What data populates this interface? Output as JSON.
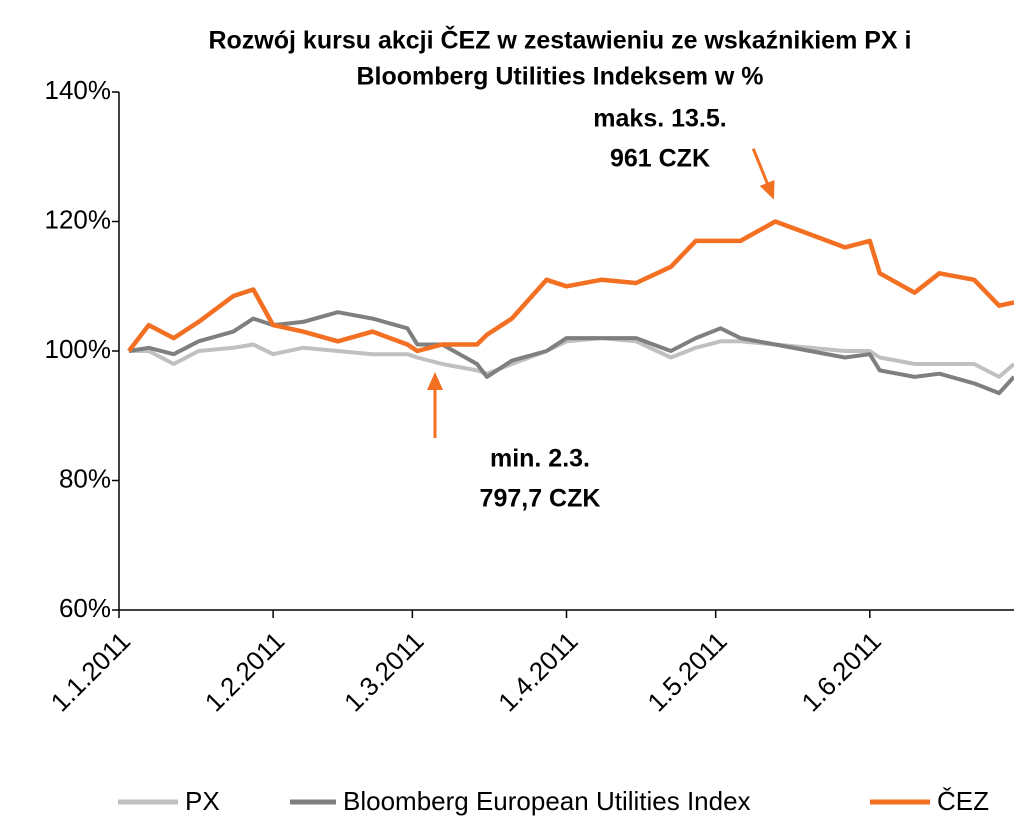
{
  "chart_data": {
    "type": "line",
    "title": [
      "Rozwój kursu akcji ČEZ w zestawieniu ze wskaźnikiem PX i",
      "Bloomberg Utilities Indeksem w %"
    ],
    "x": [
      "2011-01-03",
      "2011-01-07",
      "2011-01-12",
      "2011-01-17",
      "2011-01-24",
      "2011-01-28",
      "2011-02-01",
      "2011-02-07",
      "2011-02-14",
      "2011-02-21",
      "2011-02-28",
      "2011-03-02",
      "2011-03-07",
      "2011-03-14",
      "2011-03-16",
      "2011-03-21",
      "2011-03-28",
      "2011-04-01",
      "2011-04-08",
      "2011-04-15",
      "2011-04-22",
      "2011-04-27",
      "2011-05-02",
      "2011-05-06",
      "2011-05-13",
      "2011-05-20",
      "2011-05-27",
      "2011-06-01",
      "2011-06-03",
      "2011-06-10",
      "2011-06-15",
      "2011-06-22",
      "2011-06-27",
      "2011-06-30"
    ],
    "series": [
      {
        "name": "PX",
        "color": "#c0c0c0",
        "values": [
          100,
          100,
          98,
          100,
          100.5,
          101,
          99.5,
          100.5,
          100,
          99.5,
          99.5,
          99,
          98,
          97,
          96.5,
          98,
          100,
          101.5,
          102,
          101.5,
          99,
          100.5,
          101.5,
          101.5,
          101,
          100.5,
          100,
          100,
          99,
          98,
          98,
          98,
          96,
          98
        ]
      },
      {
        "name": "Bloomberg European Utilities Index",
        "color": "#7f7f7f",
        "values": [
          100,
          100.5,
          99.5,
          101.5,
          103,
          105,
          104,
          104.5,
          106,
          105,
          103.5,
          101,
          101,
          98,
          96,
          98.5,
          100,
          102,
          102,
          102,
          100,
          102,
          103.5,
          102,
          101,
          100,
          99,
          99.5,
          97,
          96,
          96.5,
          95,
          93.5,
          96
        ]
      },
      {
        "name": "ČEZ",
        "color": "#f36f21",
        "values": [
          100,
          104,
          102,
          104.5,
          108.5,
          109.5,
          104,
          103,
          101.5,
          103,
          101,
          100,
          101,
          101,
          102.5,
          105,
          111,
          110,
          111,
          110.5,
          113,
          117,
          117,
          117,
          120,
          118,
          116,
          117,
          112,
          109,
          112,
          111,
          107,
          107.5
        ]
      }
    ],
    "annotations": [
      {
        "lines": [
          "maks. 13.5.",
          "961 CZK"
        ],
        "color": "#f36f21"
      },
      {
        "lines": [
          "min. 2.3.",
          "797,7 CZK"
        ],
        "color": "#f36f21"
      }
    ],
    "xlim": [
      "2011-01-01",
      "2011-06-30"
    ],
    "xticks": [
      {
        "value": "2011-01-01",
        "label": "1.1.2011"
      },
      {
        "value": "2011-02-01",
        "label": "1.2.2011"
      },
      {
        "value": "2011-03-01",
        "label": "1.3.2011"
      },
      {
        "value": "2011-04-01",
        "label": "1.4.2011"
      },
      {
        "value": "2011-05-01",
        "label": "1.5.2011"
      },
      {
        "value": "2011-06-01",
        "label": "1.6.2011"
      }
    ],
    "ylim": [
      60,
      140
    ],
    "yticks": [
      {
        "value": 60,
        "label": "60%"
      },
      {
        "value": 80,
        "label": "80%"
      },
      {
        "value": 100,
        "label": "100%"
      },
      {
        "value": 120,
        "label": "120%"
      },
      {
        "value": 140,
        "label": "140%"
      }
    ],
    "grid": false,
    "legend": "bottom"
  }
}
